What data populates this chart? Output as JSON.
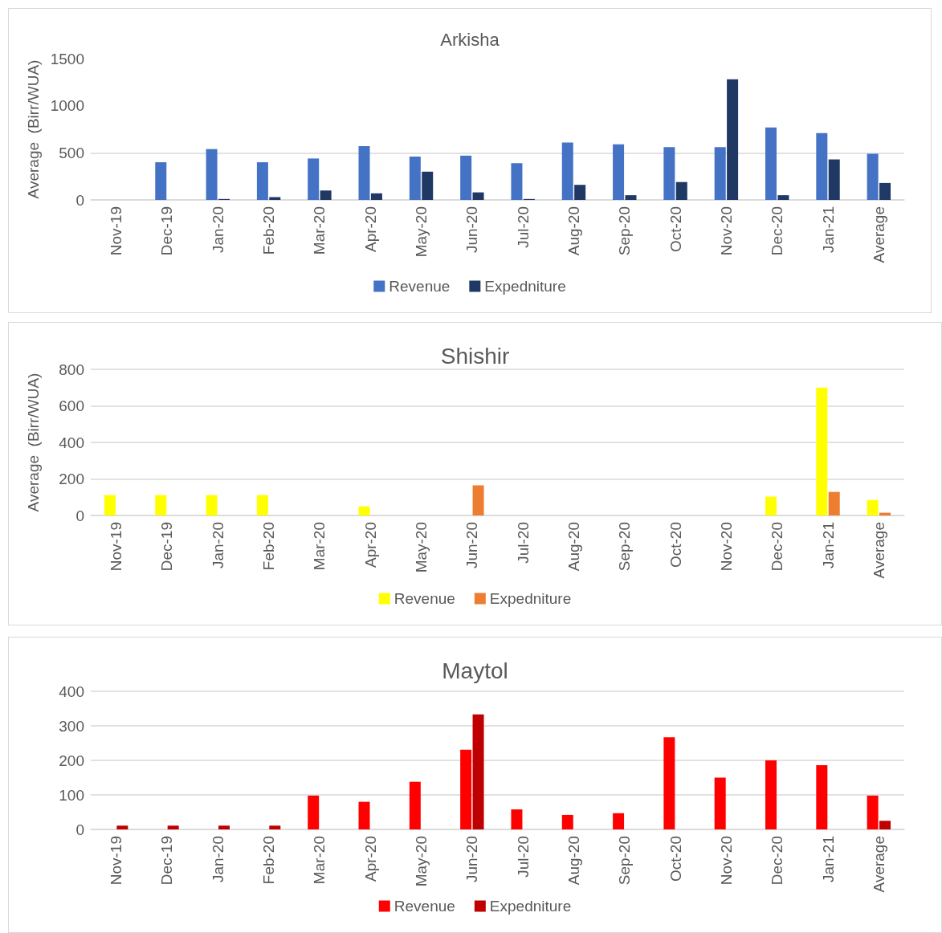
{
  "chart_data": [
    {
      "type": "bar",
      "title": "Arkisha",
      "ylabel": "Average  (Birr/WUA)",
      "categories": [
        "Nov-19",
        "Dec-19",
        "Jan-20",
        "Feb-20",
        "Mar-20",
        "Apr-20",
        "May-20",
        "Jun-20",
        "Jul-20",
        "Aug-20",
        "Sep-20",
        "Oct-20",
        "Nov-20",
        "Dec-20",
        "Jan-21",
        "Average"
      ],
      "series": [
        {
          "name": "Revenue",
          "color": "#4472c4",
          "values": [
            null,
            400,
            540,
            400,
            440,
            570,
            460,
            470,
            390,
            610,
            590,
            560,
            560,
            770,
            710,
            490
          ]
        },
        {
          "name": "Expedniture",
          "color": "#1f3864",
          "values": [
            null,
            null,
            10,
            30,
            100,
            70,
            300,
            80,
            10,
            160,
            50,
            190,
            1280,
            50,
            430,
            180
          ]
        }
      ],
      "ylim": [
        0,
        1500
      ],
      "yticks": [
        0,
        500,
        {
          "value": 1000,
          "label": "1000"
        },
        {
          "value": 1500,
          "label": "1500"
        }
      ],
      "grid": "y",
      "legend": "bottom"
    },
    {
      "type": "bar",
      "title": "Shishir",
      "ylabel": "Average  (Birr/WUA)",
      "categories": [
        "Nov-19",
        "Dec-19",
        "Jan-20",
        "Feb-20",
        "Mar-20",
        "Apr-20",
        "May-20",
        "Jun-20",
        "Jul-20",
        "Aug-20",
        "Sep-20",
        "Oct-20",
        "Nov-20",
        "Dec-20",
        "Jan-21",
        "Average"
      ],
      "series": [
        {
          "name": "Revenue",
          "color": "#ffff00",
          "values": [
            112,
            112,
            112,
            112,
            null,
            50,
            null,
            null,
            null,
            null,
            null,
            null,
            null,
            103,
            700,
            85
          ]
        },
        {
          "name": "Expedniture",
          "color": "#ed7d31",
          "values": [
            null,
            null,
            null,
            null,
            null,
            null,
            null,
            165,
            null,
            null,
            null,
            null,
            null,
            null,
            129,
            15
          ]
        }
      ],
      "ylim": [
        0,
        800
      ],
      "yticks": [
        0,
        200,
        400,
        600,
        800
      ],
      "grid": "y",
      "legend": "bottom"
    },
    {
      "type": "bar",
      "title": "Maytol",
      "categories": [
        "Nov-19",
        "Dec-19",
        "Jan-20",
        "Feb-20",
        "Mar-20",
        "Apr-20",
        "May-20",
        "Jun-20",
        "Jul-20",
        "Aug-20",
        "Sep-20",
        "Oct-20",
        "Nov-20",
        "Dec-20",
        "Jan-21",
        "Average"
      ],
      "series": [
        {
          "name": "Revenue",
          "color": "#ff0000",
          "values": [
            null,
            null,
            null,
            null,
            98,
            80,
            138,
            231,
            58,
            42,
            47,
            267,
            150,
            200,
            186,
            98
          ]
        },
        {
          "name": "Expedniture",
          "color": "#c00000",
          "values": [
            11,
            11,
            11,
            11,
            null,
            null,
            null,
            333,
            null,
            null,
            null,
            null,
            null,
            null,
            null,
            25
          ]
        }
      ],
      "ylim": [
        0,
        400
      ],
      "yticks": [
        0,
        100,
        200,
        300,
        400
      ],
      "grid": "y",
      "legend": "bottom"
    }
  ]
}
